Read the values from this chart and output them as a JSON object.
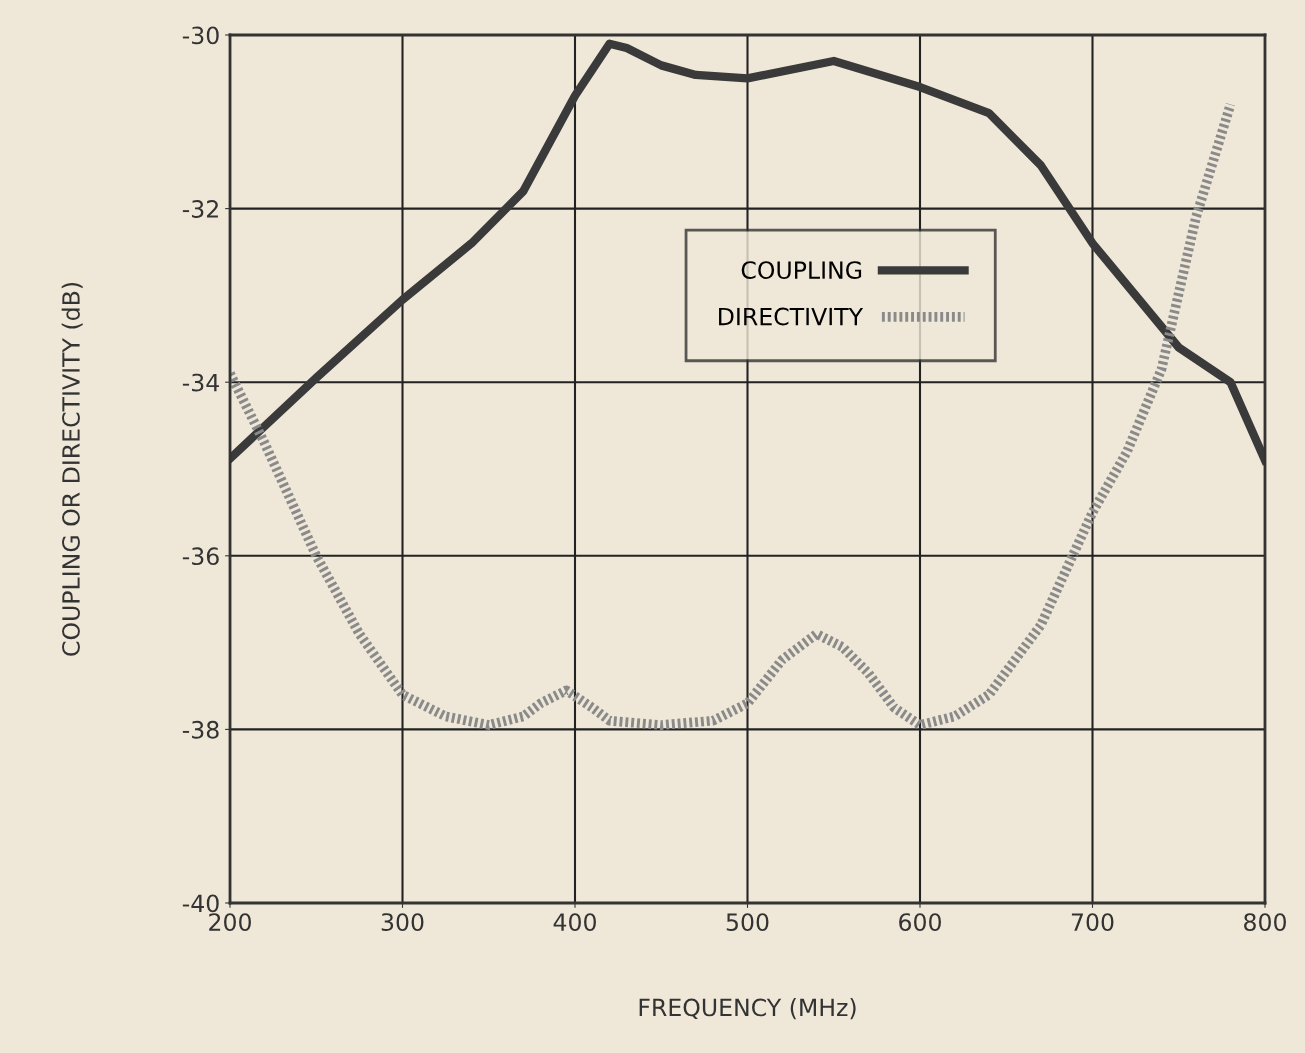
{
  "chart_data": {
    "type": "line",
    "xlabel": "FREQUENCY (MHz)",
    "ylabel": "COUPLING OR DIRECTIVITY (dB)",
    "xlim": [
      200,
      800
    ],
    "xticks": [
      200,
      300,
      400,
      500,
      600,
      700,
      800
    ],
    "ylim": [
      -40,
      -30
    ],
    "yticks": [
      -40,
      -38,
      -36,
      -34,
      -32,
      -30
    ],
    "grid": true,
    "legend": "center",
    "series": [
      {
        "name": "COUPLING",
        "color": "#3a3a3a",
        "line_style": "solid",
        "x": [
          200,
          250,
          300,
          340,
          370,
          400,
          420,
          430,
          450,
          470,
          500,
          550,
          600,
          640,
          670,
          700,
          750,
          780,
          800
        ],
        "values": [
          -34.88,
          -33.95,
          -33.05,
          -32.4,
          -31.8,
          -30.7,
          -30.1,
          -30.15,
          -30.35,
          -30.46,
          -30.5,
          -30.3,
          -30.6,
          -30.9,
          -31.5,
          -32.4,
          -33.6,
          -34.0,
          -34.9
        ]
      },
      {
        "name": "DIRECTIVITY",
        "color": "#8a8a8a",
        "line_style": "dotted",
        "x": [
          200,
          220,
          250,
          275,
          300,
          325,
          350,
          370,
          380,
          395,
          410,
          420,
          450,
          480,
          500,
          520,
          540,
          555,
          570,
          585,
          600,
          620,
          640,
          670,
          700,
          720,
          740,
          760,
          780
        ],
        "values": [
          -33.9,
          -34.7,
          -36.0,
          -36.9,
          -37.6,
          -37.85,
          -37.95,
          -37.85,
          -37.7,
          -37.55,
          -37.75,
          -37.9,
          -37.95,
          -37.9,
          -37.7,
          -37.2,
          -36.9,
          -37.05,
          -37.35,
          -37.75,
          -37.95,
          -37.85,
          -37.6,
          -36.8,
          -35.5,
          -34.8,
          -33.85,
          -32.1,
          -30.8
        ]
      }
    ]
  }
}
